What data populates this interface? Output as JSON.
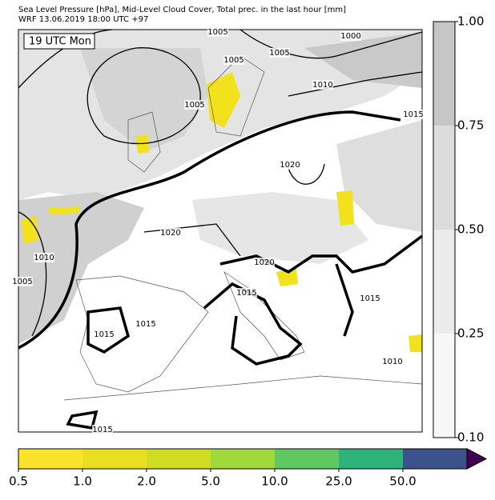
{
  "header": {
    "line1": "Sea Level Pressure [hPa], Mid-Level Cloud Cover, Total prec. in the last hour [mm]",
    "line2": "WRF 13.06.2019 18:00 UTC +97"
  },
  "map": {
    "time_label": "19 UTC Mon",
    "contour_labels": [
      "1005",
      "1000",
      "1005",
      "1005",
      "1010",
      "1005",
      "1015",
      "1020",
      "1020",
      "1020",
      "1010",
      "1005",
      "1015",
      "1015",
      "1015",
      "1015",
      "1010",
      "1015"
    ]
  },
  "cloud_colorbar": {
    "levels": [
      {
        "value": 0.1,
        "label": "0.10"
      },
      {
        "value": 0.25,
        "label": "0.25"
      },
      {
        "value": 0.5,
        "label": "0.50"
      },
      {
        "value": 0.75,
        "label": "0.75"
      },
      {
        "value": 1.0,
        "label": "1.00"
      }
    ],
    "colors": [
      "#f7f7f7",
      "#ebebeb",
      "#dcdcdc",
      "#c6c6c6"
    ]
  },
  "precip_colorbar": {
    "levels": [
      {
        "value": 0.5,
        "label": "0.5"
      },
      {
        "value": 1,
        "label": "1.0"
      },
      {
        "value": 2,
        "label": "2.0"
      },
      {
        "value": 5,
        "label": "5.0"
      },
      {
        "value": 10,
        "label": "10.0"
      },
      {
        "value": 25,
        "label": "25.0"
      },
      {
        "value": 50,
        "label": "50.0"
      }
    ],
    "colors": [
      "#fbe22b",
      "#e9df1e",
      "#cfdc22",
      "#a0d93b",
      "#5fc862",
      "#2db37a",
      "#3b528b"
    ],
    "extend_color": "#440154"
  }
}
